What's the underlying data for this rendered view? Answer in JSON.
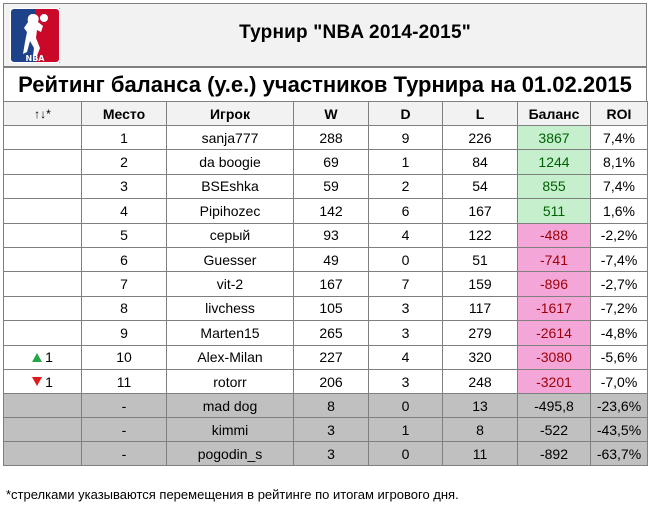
{
  "logo": {
    "icon": "nba-logo-icon",
    "text": "NBA"
  },
  "tournament_title": "Турнир \"NBA 2014-2015\"",
  "rating_title": "Рейтинг баланса (у.е.) участников Турнира на 01.02.2015",
  "columns": {
    "moves": "↑↓*",
    "place": "Место",
    "player": "Игрок",
    "w": "W",
    "d": "D",
    "l": "L",
    "balance": "Баланс",
    "roi": "ROI"
  },
  "rows": [
    {
      "move": "",
      "place": "1",
      "player": "sanja777",
      "w": "288",
      "d": "9",
      "l": "226",
      "balance": "3867",
      "roi": "7,4%"
    },
    {
      "move": "",
      "place": "2",
      "player": "da boogie",
      "w": "69",
      "d": "1",
      "l": "84",
      "balance": "1244",
      "roi": "8,1%"
    },
    {
      "move": "",
      "place": "3",
      "player": "BSEshka",
      "w": "59",
      "d": "2",
      "l": "54",
      "balance": "855",
      "roi": "7,4%"
    },
    {
      "move": "",
      "place": "4",
      "player": "Pipihozec",
      "w": "142",
      "d": "6",
      "l": "167",
      "balance": "511",
      "roi": "1,6%"
    },
    {
      "move": "",
      "place": "5",
      "player": "серый",
      "w": "93",
      "d": "4",
      "l": "122",
      "balance": "-488",
      "roi": "-2,2%"
    },
    {
      "move": "",
      "place": "6",
      "player": "Guesser",
      "w": "49",
      "d": "0",
      "l": "51",
      "balance": "-741",
      "roi": "-7,4%"
    },
    {
      "move": "",
      "place": "7",
      "player": "vit-2",
      "w": "167",
      "d": "7",
      "l": "159",
      "balance": "-896",
      "roi": "-2,7%"
    },
    {
      "move": "",
      "place": "8",
      "player": "livchess",
      "w": "105",
      "d": "3",
      "l": "117",
      "balance": "-1617",
      "roi": "-7,2%"
    },
    {
      "move": "",
      "place": "9",
      "player": "Marten15",
      "w": "265",
      "d": "3",
      "l": "279",
      "balance": "-2614",
      "roi": "-4,8%"
    },
    {
      "move": "1",
      "dir": "up",
      "place": "10",
      "player": "Alex-Milan",
      "w": "227",
      "d": "4",
      "l": "320",
      "balance": "-3080",
      "roi": "-5,6%"
    },
    {
      "move": "1",
      "dir": "down",
      "place": "11",
      "player": "rotorr",
      "w": "206",
      "d": "3",
      "l": "248",
      "balance": "-3201",
      "roi": "-7,0%"
    }
  ],
  "unranked_rows": [
    {
      "place": "-",
      "player": "mad dog",
      "w": "8",
      "d": "0",
      "l": "13",
      "balance": "-495,8",
      "roi": "-23,6%"
    },
    {
      "place": "-",
      "player": "kimmi",
      "w": "3",
      "d": "1",
      "l": "8",
      "balance": "-522",
      "roi": "-43,5%"
    },
    {
      "place": "-",
      "player": "pogodin_s",
      "w": "3",
      "d": "0",
      "l": "11",
      "balance": "-892",
      "roi": "-63,7%"
    }
  ],
  "colors": {
    "positive_fill": "#c6efce",
    "negative_fill": "#f4a6d9",
    "up_arrow": "#22a84a",
    "down_arrow": "#e01b1b",
    "unranked_fill": "#c0c0c0"
  },
  "footnote": "*стрелками указываются перемещения в рейтинге по итогам игрового дня."
}
